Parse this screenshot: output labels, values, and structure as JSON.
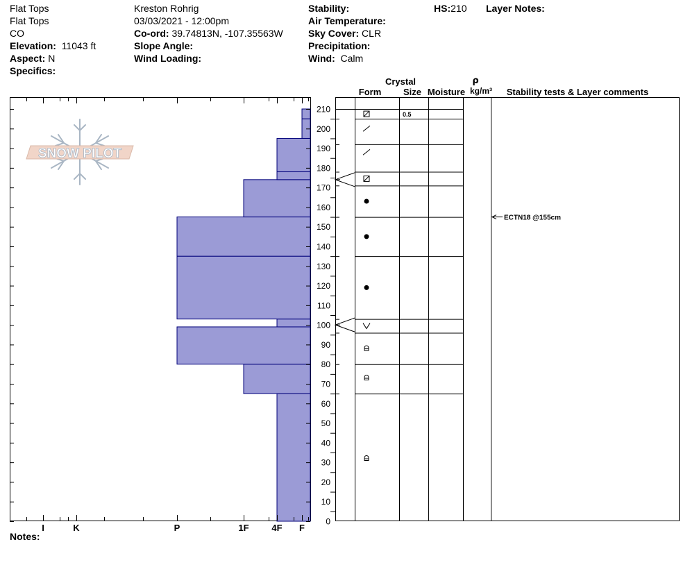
{
  "header": {
    "range": "Flat Tops",
    "location": "Flat Tops",
    "state": "CO",
    "elevation_label": "Elevation:",
    "elevation_value": "11043 ft",
    "aspect_label": "Aspect:",
    "aspect_value": "N",
    "specifics_label": "Specifics:",
    "observer": "Kreston Rohrig",
    "datetime": "03/03/2021 - 12:00pm",
    "coord_label": "Co-ord:",
    "coord_value": "39.74813N, -107.35563W",
    "slope_label": "Slope Angle:",
    "wind_loading_label": "Wind Loading:",
    "stability_label": "Stability:",
    "air_temp_label": "Air Temperature:",
    "sky_label": "Sky Cover:",
    "sky_value": "CLR",
    "precip_label": "Precipitation:",
    "wind_label": "Wind:",
    "wind_value": "Calm",
    "hs_label": "HS:",
    "hs_value": "210",
    "layer_notes_label": "Layer Notes:",
    "notes_label": "Notes:"
  },
  "logo": {
    "text": "SNOW PILOT"
  },
  "columns": {
    "crystal": "Crystal",
    "form": "Form",
    "size": "Size",
    "moisture": "Moisture",
    "rho": "ρ",
    "density_unit": "kg/m³",
    "stability": "Stability tests & Layer comments"
  },
  "colors": {
    "fill": "#9b9bd6",
    "edge": "#00007a",
    "logo_fill": "#f1d5c8",
    "logo_stroke": "#a9b6c4"
  },
  "chart_data": {
    "type": "bar",
    "orientation": "horizontal",
    "ylim": [
      0,
      210
    ],
    "y_ticks": [
      "0",
      "10",
      "20",
      "30",
      "40",
      "50",
      "60",
      "70",
      "80",
      "90",
      "100",
      "110",
      "120",
      "130",
      "140",
      "150",
      "160",
      "170",
      "180",
      "190",
      "200",
      "210"
    ],
    "hardness_labels": [
      "I",
      "K",
      "P",
      "1F",
      "4F",
      "F"
    ],
    "hardness_scale": {
      "I": 5,
      "K": 4,
      "P": 3,
      "1F": 2,
      "4F": 1,
      "F": 0.25
    },
    "layers": [
      {
        "bottom": 0,
        "top": 65,
        "hardness": "4F",
        "form": "rounded-faceted",
        "size": ""
      },
      {
        "bottom": 65,
        "top": 80,
        "hardness": "1F",
        "form": "rounded-faceted",
        "size": ""
      },
      {
        "bottom": 80,
        "top": 99,
        "hardness": "P",
        "form": "rounded-faceted",
        "size": ""
      },
      {
        "bottom": 99,
        "top": 103,
        "hardness": "4F",
        "form": "depth-hoar",
        "size": ""
      },
      {
        "bottom": 103,
        "top": 135,
        "hardness": "P",
        "form": "rounded",
        "size": ""
      },
      {
        "bottom": 135,
        "top": 155,
        "hardness": "P",
        "form": "rounded",
        "size": ""
      },
      {
        "bottom": 155,
        "top": 174,
        "hardness": "1F",
        "form": "rounded",
        "size": ""
      },
      {
        "bottom": 174,
        "top": 178,
        "hardness": "4F",
        "form": "faceted",
        "size": ""
      },
      {
        "bottom": 178,
        "top": 195,
        "hardness": "4F",
        "form": "decomposing",
        "size": ""
      },
      {
        "bottom": 195,
        "top": 205,
        "hardness": "F",
        "form": "decomposing",
        "size": ""
      },
      {
        "bottom": 205,
        "top": 210,
        "hardness": "F",
        "form": "faceted",
        "size": "0.5"
      }
    ],
    "form_cells": [
      {
        "bottom": 205,
        "top": 210,
        "symbol": "faceted",
        "y": 207.5,
        "size": "0.5"
      },
      {
        "bottom": 178,
        "top": 205,
        "symbol": "decomposing",
        "y": 200
      },
      {
        "bottom": 178,
        "top": 205,
        "symbol": "decomposing",
        "y": 188
      },
      {
        "bottom": 171,
        "top": 178,
        "symbol": "faceted",
        "y": 174.5
      },
      {
        "bottom": 155,
        "top": 171,
        "symbol": "rounded",
        "y": 163
      },
      {
        "bottom": 135,
        "top": 155,
        "symbol": "rounded",
        "y": 145
      },
      {
        "bottom": 103,
        "top": 135,
        "symbol": "rounded",
        "y": 119
      },
      {
        "bottom": 96,
        "top": 103,
        "symbol": "depth-hoar",
        "y": 99.5
      },
      {
        "bottom": 80,
        "top": 96,
        "symbol": "rounded-faceted",
        "y": 88
      },
      {
        "bottom": 65,
        "top": 80,
        "symbol": "rounded-faceted",
        "y": 73
      },
      {
        "bottom": 0,
        "top": 65,
        "symbol": "rounded-faceted",
        "y": 32
      }
    ],
    "row_boundaries": [
      210,
      205,
      192,
      178,
      171,
      155,
      135,
      103,
      96,
      80,
      65,
      0
    ],
    "stability_tests": [
      {
        "depth": 155,
        "label": "ECTN18 @155cm"
      }
    ],
    "interface_markers": [
      174,
      100
    ]
  }
}
